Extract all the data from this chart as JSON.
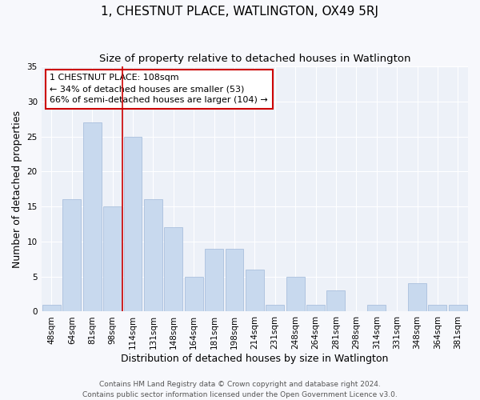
{
  "title": "1, CHESTNUT PLACE, WATLINGTON, OX49 5RJ",
  "subtitle": "Size of property relative to detached houses in Watlington",
  "xlabel": "Distribution of detached houses by size in Watlington",
  "ylabel": "Number of detached properties",
  "categories": [
    "48sqm",
    "64sqm",
    "81sqm",
    "98sqm",
    "114sqm",
    "131sqm",
    "148sqm",
    "164sqm",
    "181sqm",
    "198sqm",
    "214sqm",
    "231sqm",
    "248sqm",
    "264sqm",
    "281sqm",
    "298sqm",
    "314sqm",
    "331sqm",
    "348sqm",
    "364sqm",
    "381sqm"
  ],
  "values": [
    1,
    16,
    27,
    15,
    25,
    16,
    12,
    5,
    9,
    9,
    6,
    1,
    5,
    1,
    3,
    0,
    1,
    0,
    4,
    1,
    1
  ],
  "bar_color": "#c8d9ee",
  "bar_edge_color": "#aac0dd",
  "reference_line_label": "1 CHESTNUT PLACE: 108sqm",
  "annotation_line1": "← 34% of detached houses are smaller (53)",
  "annotation_line2": "66% of semi-detached houses are larger (104) →",
  "ylim": [
    0,
    35
  ],
  "yticks": [
    0,
    5,
    10,
    15,
    20,
    25,
    30,
    35
  ],
  "footer_line1": "Contains HM Land Registry data © Crown copyright and database right 2024.",
  "footer_line2": "Contains public sector information licensed under the Open Government Licence v3.0.",
  "fig_bg_color": "#f7f8fc",
  "plot_bg_color": "#edf1f8",
  "grid_color": "#ffffff",
  "annotation_box_edge": "#cc0000",
  "ref_line_color": "#cc0000",
  "title_fontsize": 11,
  "subtitle_fontsize": 9.5,
  "axis_label_fontsize": 9,
  "tick_fontsize": 7.5,
  "annotation_fontsize": 8,
  "footer_fontsize": 6.5,
  "ref_line_index": 3.5
}
